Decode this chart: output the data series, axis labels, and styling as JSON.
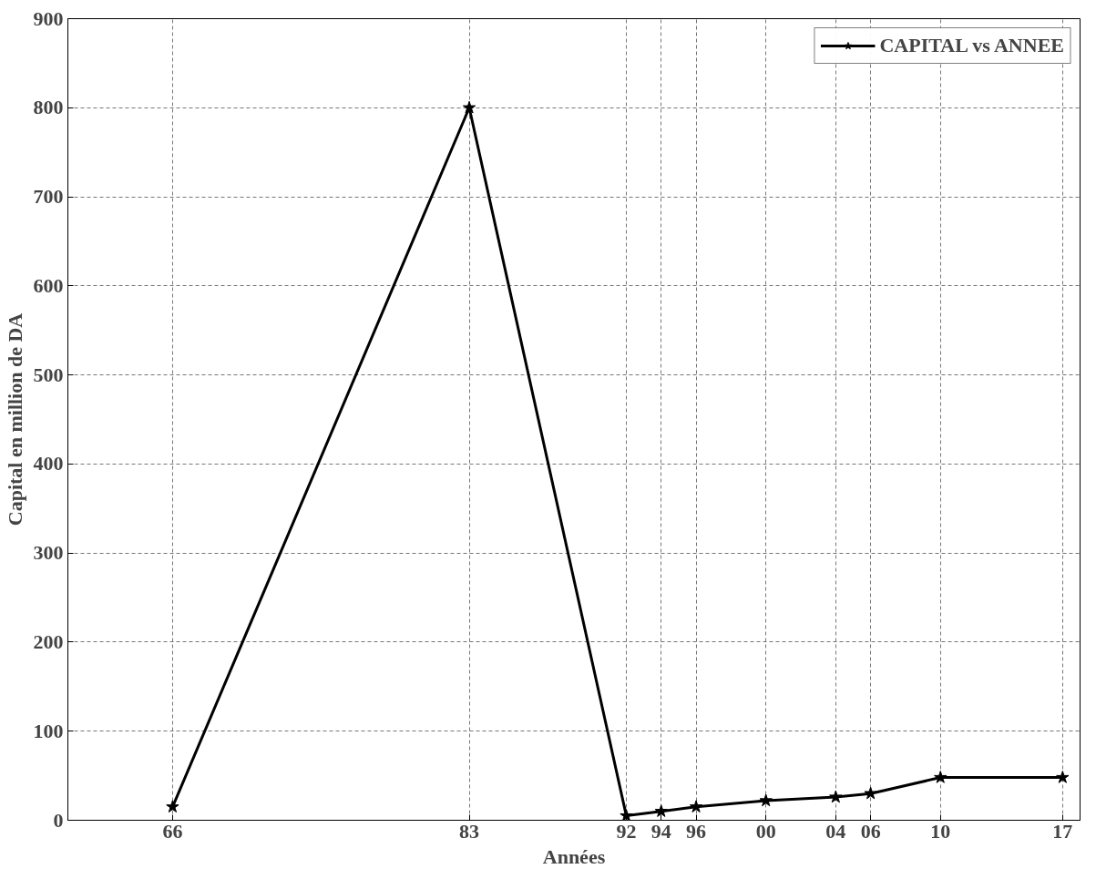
{
  "chart_data": {
    "type": "line",
    "xlabel": "Années",
    "ylabel": "Capital en million de DA",
    "x": [
      1966,
      1983,
      1992,
      1994,
      1996,
      2000,
      2004,
      2006,
      2010,
      2017
    ],
    "series": [
      {
        "name": "CAPITAL vs ANNEE",
        "color": "#000000",
        "values": [
          15,
          800,
          5,
          10,
          15,
          22,
          26,
          30,
          48,
          48
        ]
      }
    ],
    "xlim": [
      1960,
      2018
    ],
    "ylim": [
      0,
      900
    ],
    "xticks": [
      {
        "value": 1966,
        "label": "66"
      },
      {
        "value": 1983,
        "label": "83"
      },
      {
        "value": 1992,
        "label": "92"
      },
      {
        "value": 1994,
        "label": "94"
      },
      {
        "value": 1996,
        "label": "96"
      },
      {
        "value": 2000,
        "label": "00"
      },
      {
        "value": 2004,
        "label": "04"
      },
      {
        "value": 2006,
        "label": "06"
      },
      {
        "value": 2010,
        "label": "10"
      },
      {
        "value": 2017,
        "label": "17"
      }
    ],
    "yticks": [
      0,
      100,
      200,
      300,
      400,
      500,
      600,
      700,
      800,
      900
    ],
    "grid": true,
    "legend": "top right",
    "marker": "star",
    "line_style": "solid"
  }
}
